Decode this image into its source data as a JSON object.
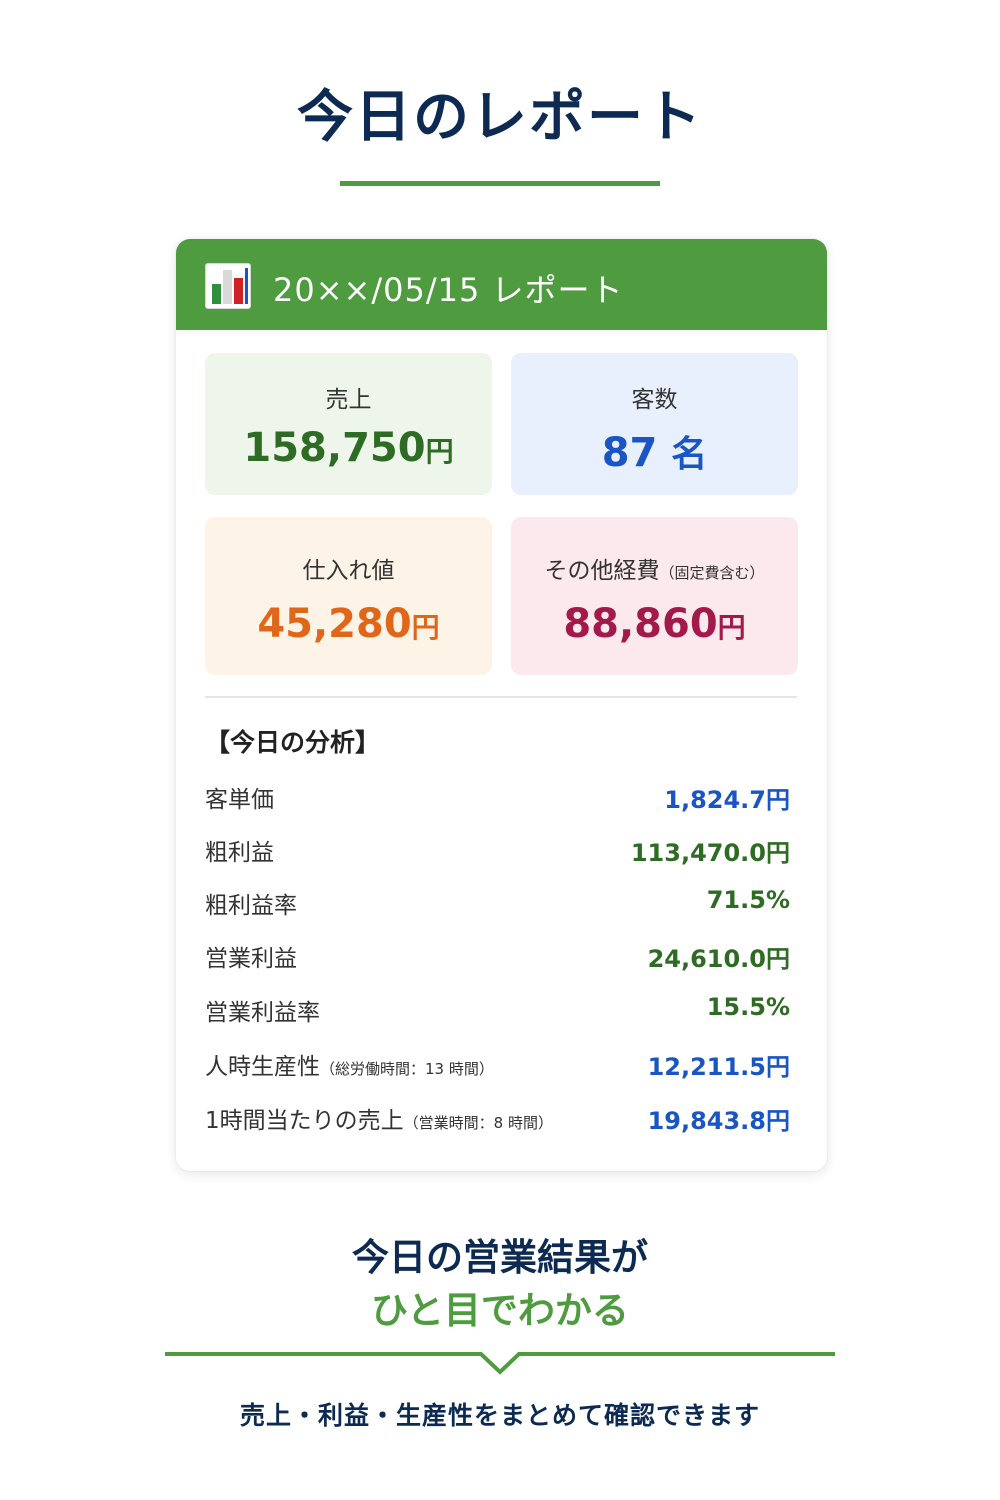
{
  "page": {
    "title": "今日のレポート",
    "accent_color": "#4f9b3f",
    "navy_color": "#0d2b52"
  },
  "card": {
    "icon": "bar-chart-icon",
    "title": "20××/05/15 レポート",
    "tiles": {
      "sales": {
        "label": "売上",
        "value": "158,750",
        "unit": "円",
        "bg": "#eef5ea",
        "color": "#2e6b24"
      },
      "customers": {
        "label": "客数",
        "value": "87",
        "unit": "名",
        "bg": "#e8effd",
        "color": "#1a55c4"
      },
      "purchase": {
        "label": "仕入れ値",
        "value": "45,280",
        "unit": "円",
        "bg": "#fdf3e7",
        "color": "#e0661a"
      },
      "other": {
        "label": "その他経費",
        "note": "（固定費含む）",
        "value": "88,860",
        "unit": "円",
        "bg": "#fbe9ee",
        "color": "#a3194a"
      }
    },
    "analysis": {
      "title": "【今日の分析】",
      "rows": [
        {
          "label": "客単価",
          "note": "",
          "value": "1,824.7円",
          "color": "#1a55c4"
        },
        {
          "label": "粗利益",
          "note": "",
          "value": "113,470.0円",
          "color": "#2e6b24"
        },
        {
          "label": "粗利益率",
          "note": "",
          "value": "71.5%",
          "color": "#2e6b24"
        },
        {
          "label": "営業利益",
          "note": "",
          "value": "24,610.0円",
          "color": "#2e6b24"
        },
        {
          "label": "営業利益率",
          "note": "",
          "value": "15.5%",
          "color": "#2e6b24"
        },
        {
          "label": "人時生産性",
          "note": "（総労働時間：13 時間）",
          "value": "12,211.5円",
          "color": "#1a55c4"
        },
        {
          "label": "1時間当たりの売上",
          "note": "（営業時間：8 時間）",
          "value": "19,843.8円",
          "color": "#1a55c4"
        }
      ]
    }
  },
  "summary": {
    "line1": "今日の営業結果が",
    "line2": "ひと目でわかる",
    "footer": "売上・利益・生産性をまとめて確認できます"
  }
}
